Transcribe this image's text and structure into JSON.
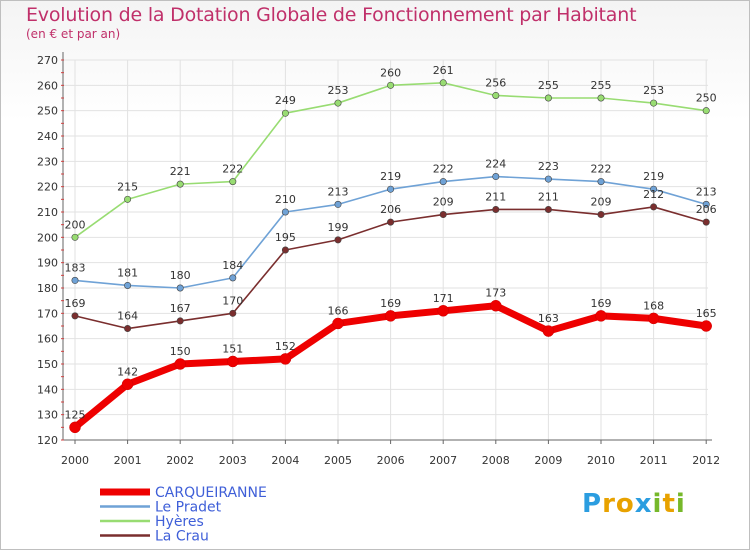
{
  "title": "Evolution de la Dotation Globale de Fonctionnement par Habitant",
  "subtitle": "(en € et par an)",
  "logo": {
    "text": "Proxiti",
    "letters": [
      "P",
      "r",
      "o",
      "x",
      "i",
      "t",
      "i"
    ],
    "colors": [
      "#2b9de0",
      "#e8a200",
      "#e8a200",
      "#2b9de0",
      "#76b82a",
      "#e8a200",
      "#76b82a"
    ]
  },
  "chart_data": {
    "type": "line",
    "x": [
      "2000",
      "2001",
      "2002",
      "2003",
      "2004",
      "2005",
      "2006",
      "2007",
      "2008",
      "2009",
      "2010",
      "2011",
      "2012"
    ],
    "ylim": [
      120,
      270
    ],
    "yticks": [
      120,
      130,
      140,
      150,
      160,
      170,
      180,
      190,
      200,
      210,
      220,
      230,
      240,
      250,
      260,
      270
    ],
    "grid": true,
    "legend_position": "bottom-left",
    "series": [
      {
        "name": "CARQUEIRANNE",
        "color": "#ee0000",
        "values": [
          125,
          142,
          150,
          151,
          152,
          166,
          169,
          171,
          173,
          163,
          169,
          168,
          165
        ]
      },
      {
        "name": "Le Pradet",
        "color": "#6fa2d6",
        "values": [
          183,
          181,
          180,
          184,
          210,
          213,
          219,
          222,
          224,
          223,
          222,
          219,
          213
        ]
      },
      {
        "name": "Hyères",
        "color": "#98dc72",
        "values": [
          200,
          215,
          221,
          222,
          249,
          253,
          260,
          261,
          256,
          255,
          255,
          253,
          250
        ]
      },
      {
        "name": "La Crau",
        "color": "#7a2e2e",
        "values": [
          169,
          164,
          167,
          170,
          195,
          199,
          206,
          209,
          211,
          211,
          209,
          212,
          206
        ]
      }
    ]
  }
}
